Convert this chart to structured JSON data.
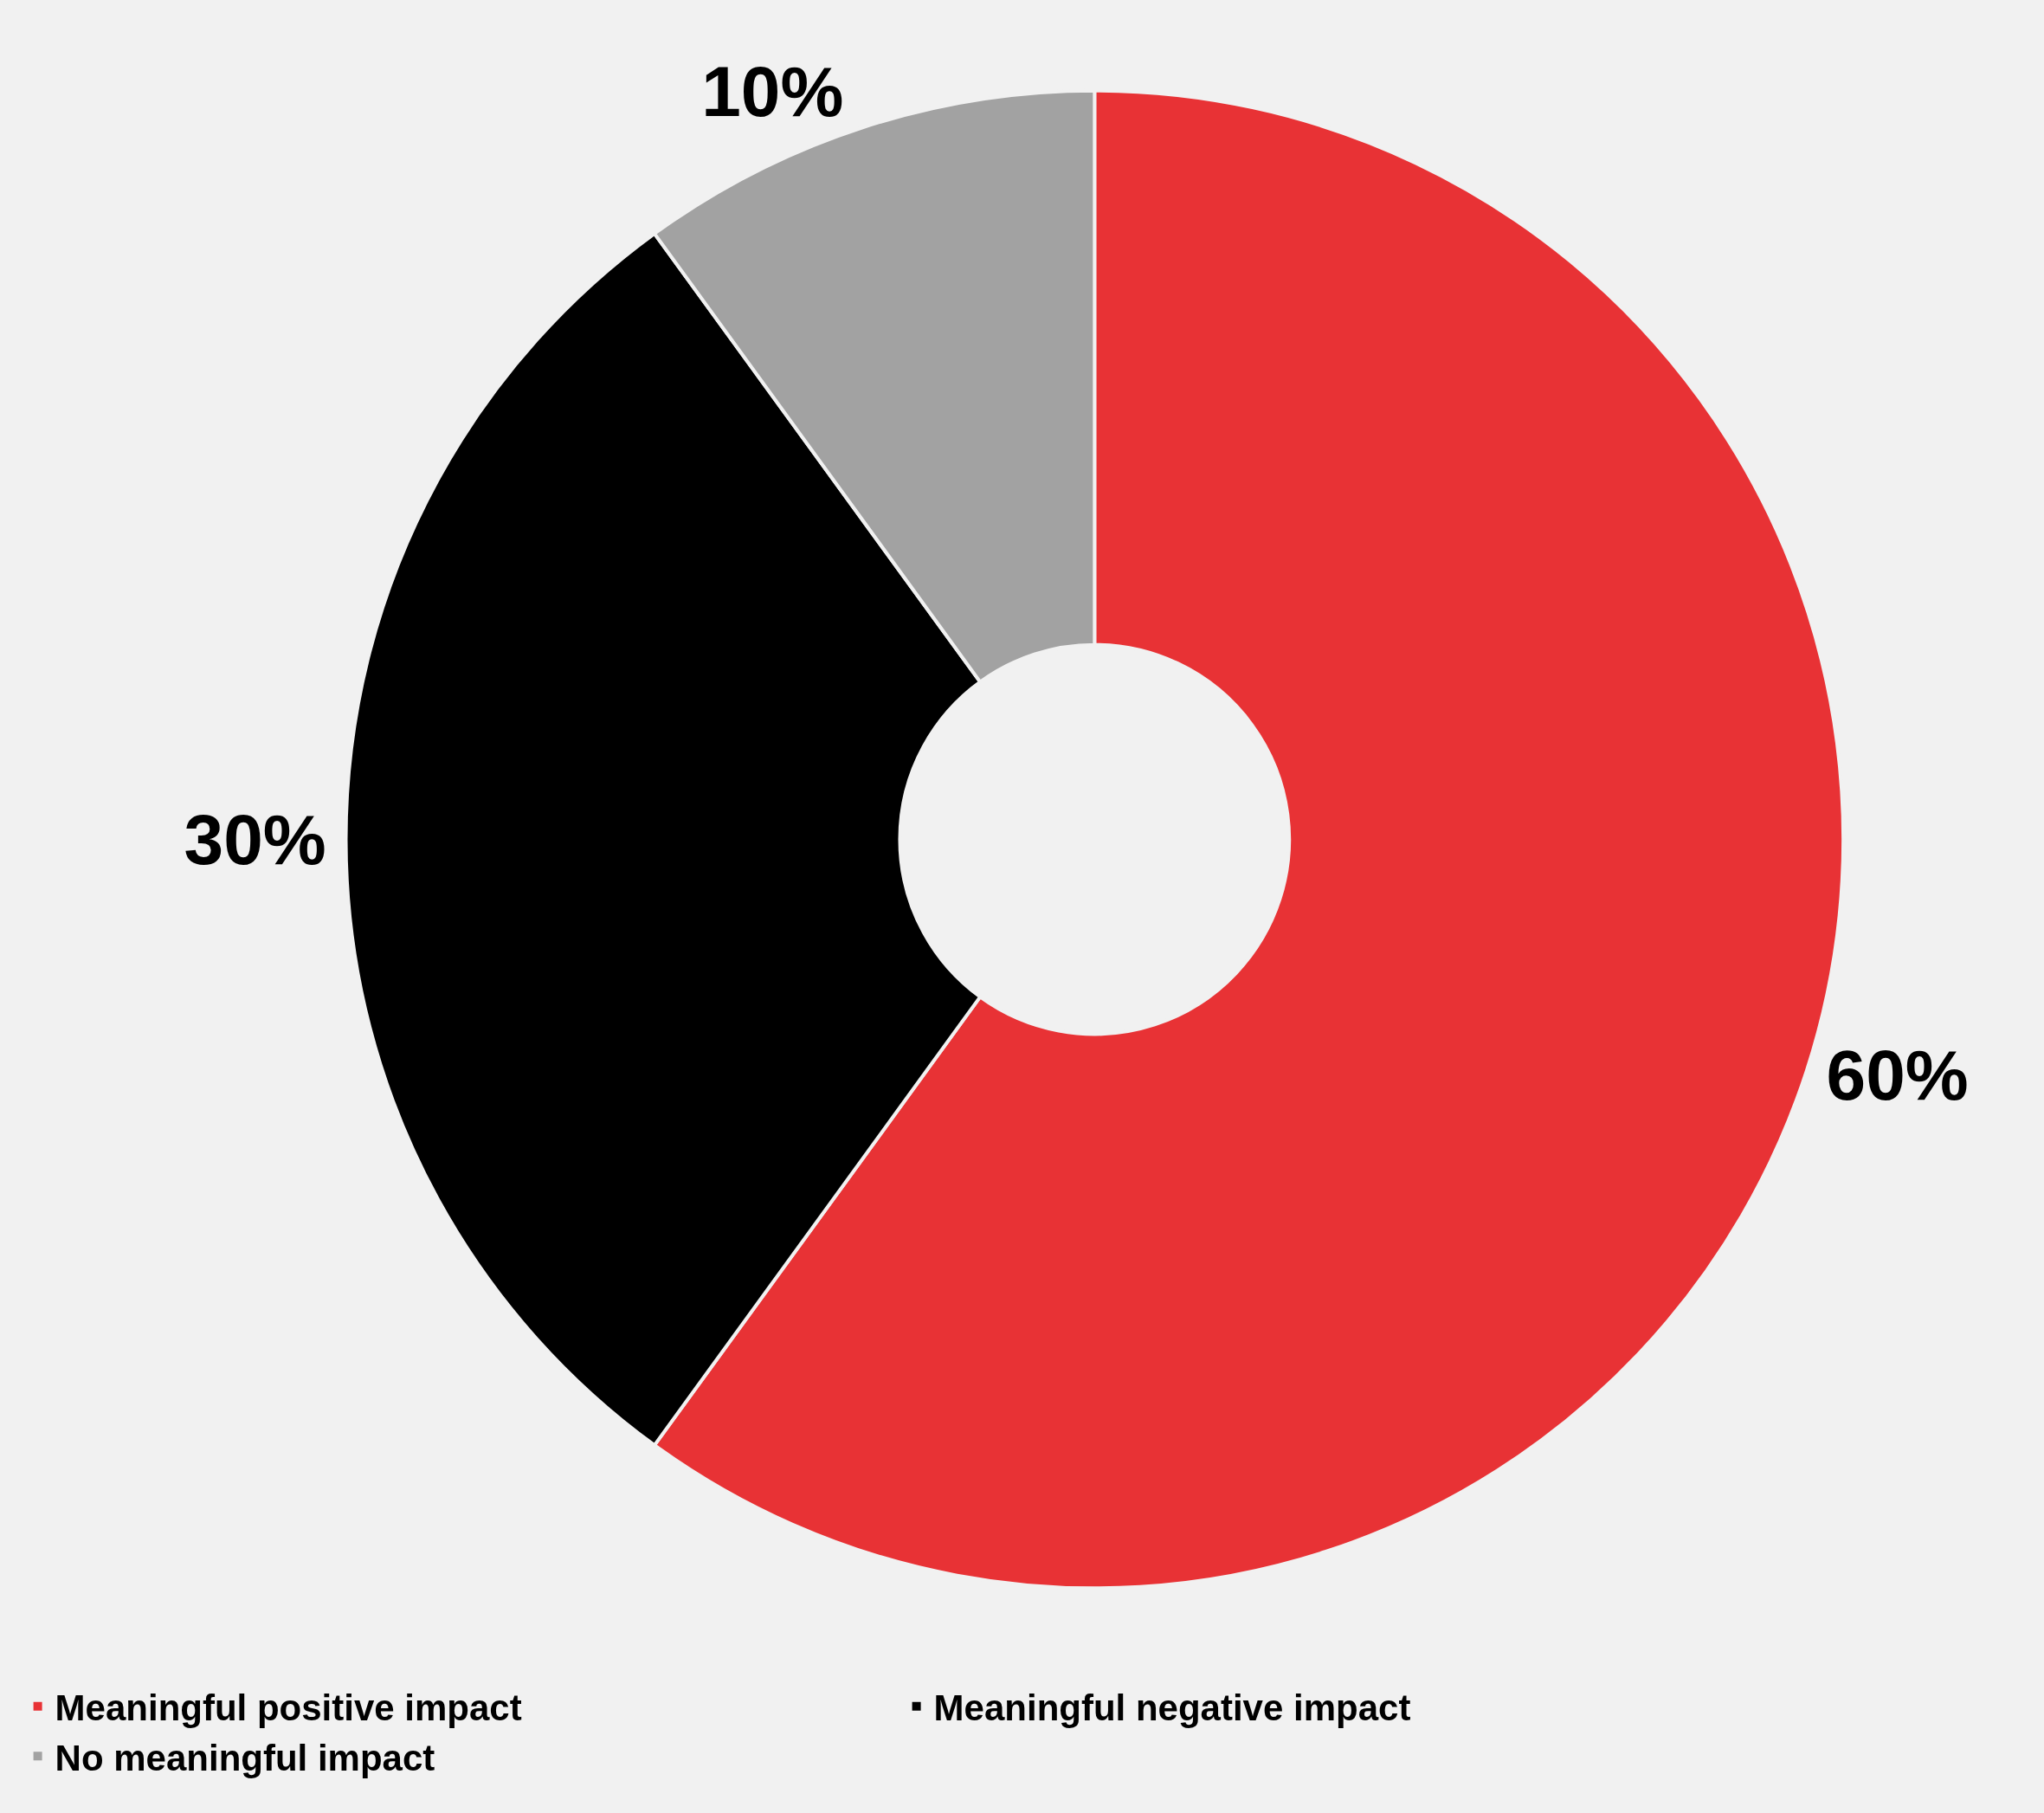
{
  "chart_data": {
    "type": "donut",
    "categories": [
      "Meaningful positive impact",
      "Meaningful negative impact",
      "No meaningful impact"
    ],
    "values": [
      60,
      30,
      10
    ],
    "colors": [
      "#e83235",
      "#000000",
      "#a2a2a2"
    ],
    "value_labels": [
      "60%",
      "30%",
      "10%"
    ],
    "legend": "bottom"
  }
}
